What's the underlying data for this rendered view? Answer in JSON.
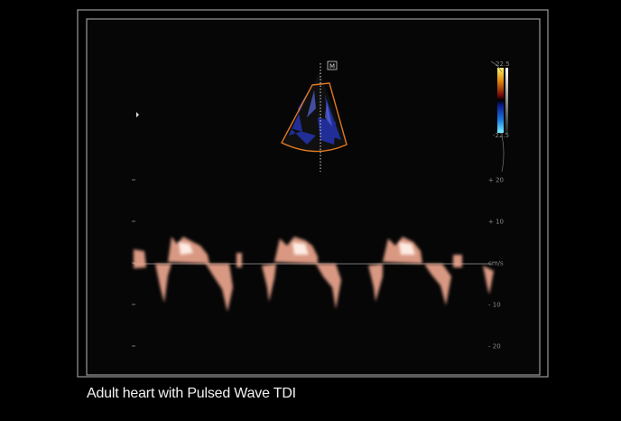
{
  "sector_marker": "M",
  "color_scale": {
    "max": "22.5",
    "min": "-22.5"
  },
  "velocity_scale": {
    "ticks": [
      "+ 20",
      "+ 10",
      "cm/s",
      "- 10",
      "- 20"
    ]
  },
  "caption": "Adult heart with Pulsed Wave TDI"
}
